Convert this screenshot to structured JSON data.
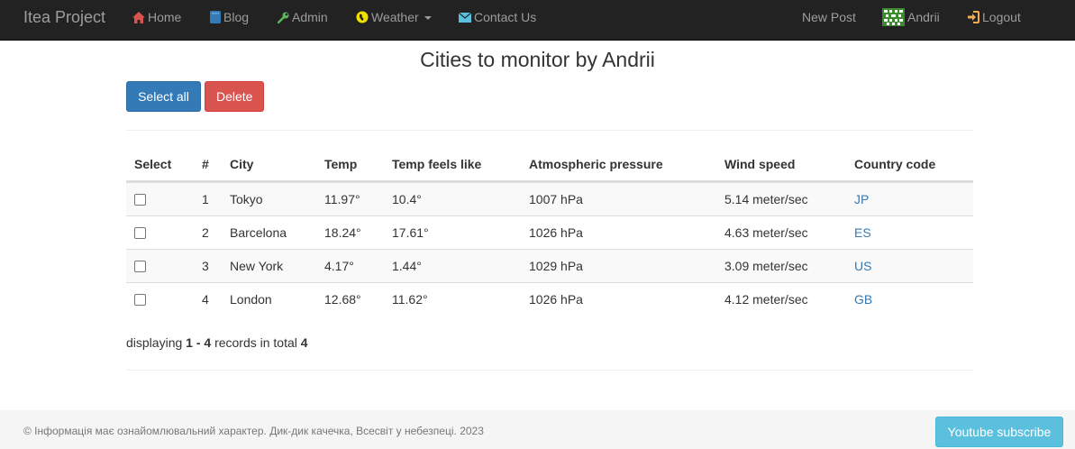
{
  "navbar": {
    "brand": "Itea Project",
    "items": [
      {
        "label": "Home",
        "icon": "home-icon",
        "color": "#d9534f"
      },
      {
        "label": "Blog",
        "icon": "book-icon",
        "color": "#337ab7"
      },
      {
        "label": "Admin",
        "icon": "wrench-icon",
        "color": "#5cb85c"
      },
      {
        "label": "Weather",
        "icon": "globe-icon",
        "color": "#f0e000"
      },
      {
        "label": "Contact Us",
        "icon": "envelope-icon",
        "color": "#5bc0de"
      }
    ],
    "right": {
      "new_post": "New Post",
      "user": "Andrii",
      "logout": "Logout"
    }
  },
  "page": {
    "title": "Cities to monitor by Andrii",
    "select_all_label": "Select all",
    "delete_label": "Delete"
  },
  "table": {
    "headers": [
      "Select",
      "#",
      "City",
      "Temp",
      "Temp feels like",
      "Atmospheric pressure",
      "Wind speed",
      "Country code"
    ],
    "rows": [
      {
        "num": "1",
        "city": "Tokyo",
        "temp": "11.97°",
        "feels": "10.4°",
        "pressure": "1007 hPa",
        "wind": "5.14 meter/sec",
        "country": "JP"
      },
      {
        "num": "2",
        "city": "Barcelona",
        "temp": "18.24°",
        "feels": "17.61°",
        "pressure": "1026 hPa",
        "wind": "4.63 meter/sec",
        "country": "ES"
      },
      {
        "num": "3",
        "city": "New York",
        "temp": "4.17°",
        "feels": "1.44°",
        "pressure": "1029 hPa",
        "wind": "3.09 meter/sec",
        "country": "US"
      },
      {
        "num": "4",
        "city": "London",
        "temp": "12.68°",
        "feels": "11.62°",
        "pressure": "1026 hPa",
        "wind": "4.12 meter/sec",
        "country": "GB"
      }
    ]
  },
  "summary": {
    "prefix": "displaying",
    "range": "1 - 4",
    "middle": "records in total",
    "total": "4"
  },
  "footer": {
    "text": "© Інформація має ознайомлювальний характер. Дик-дик качечка, Всесвіт у небезпеці. 2023",
    "youtube_label": "Youtube subscribe"
  }
}
